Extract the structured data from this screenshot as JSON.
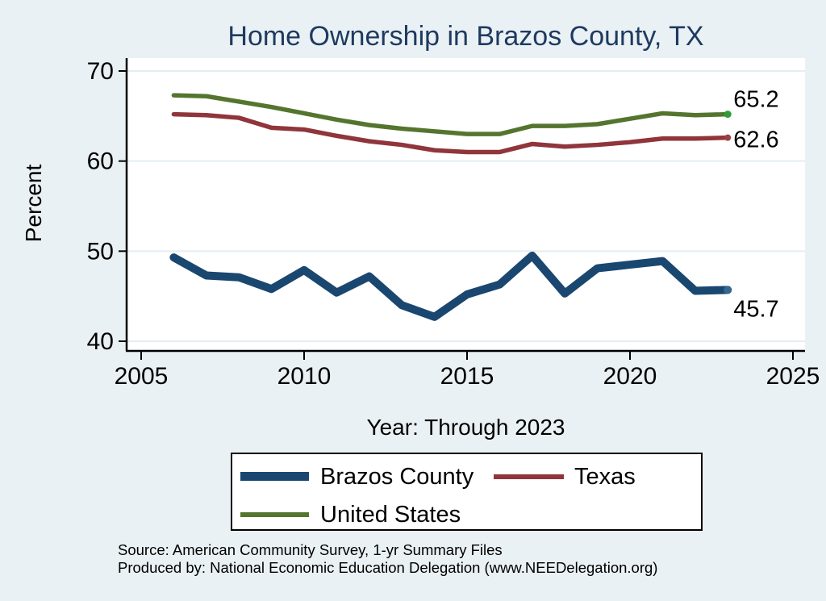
{
  "chart_data": {
    "type": "line",
    "title": "Home Ownership in Brazos County, TX",
    "ylabel": "Percent",
    "xlabel": "Year: Through 2023",
    "grid": true,
    "legend_position": "bottom",
    "x": [
      2006,
      2007,
      2008,
      2009,
      2010,
      2011,
      2012,
      2013,
      2014,
      2015,
      2016,
      2017,
      2018,
      2019,
      2020,
      2021,
      2022,
      2023
    ],
    "series": [
      {
        "name": "Brazos County",
        "color": "#1a476f",
        "end_dot_color": "#36688f",
        "end_label": "45.7",
        "values": [
          49.3,
          47.3,
          47.1,
          45.8,
          47.9,
          45.4,
          47.2,
          44.0,
          42.7,
          45.2,
          46.3,
          49.5,
          45.3,
          48.1,
          48.5,
          48.9,
          45.6,
          45.7
        ]
      },
      {
        "name": "Texas",
        "color": "#90353b",
        "end_dot_color": "#9c4046",
        "end_label": "62.6",
        "values": [
          65.2,
          65.1,
          64.8,
          63.7,
          63.5,
          62.8,
          62.2,
          61.8,
          61.2,
          61.0,
          61.0,
          61.9,
          61.6,
          61.8,
          62.1,
          62.5,
          62.5,
          62.6
        ]
      },
      {
        "name": "United States",
        "color": "#55752f",
        "end_dot_color": "#2f9e3a",
        "end_label": "65.2",
        "values": [
          67.3,
          67.2,
          66.6,
          66.0,
          65.3,
          64.6,
          64.0,
          63.6,
          63.3,
          63.0,
          63.0,
          63.9,
          63.9,
          64.1,
          64.7,
          65.3,
          65.1,
          65.2
        ]
      }
    ],
    "xaxis": {
      "ticks": [
        2005,
        2010,
        2015,
        2020,
        2025
      ],
      "range": [
        2005,
        2025
      ]
    },
    "yaxis": {
      "ticks": [
        70,
        60,
        50,
        40
      ],
      "range": [
        40,
        70
      ]
    }
  },
  "source": {
    "line1": "Source: American Community Survey, 1-yr Summary Files",
    "line2": "Produced by: National Economic Education Delegation (www.NEEDelegation.org)"
  }
}
